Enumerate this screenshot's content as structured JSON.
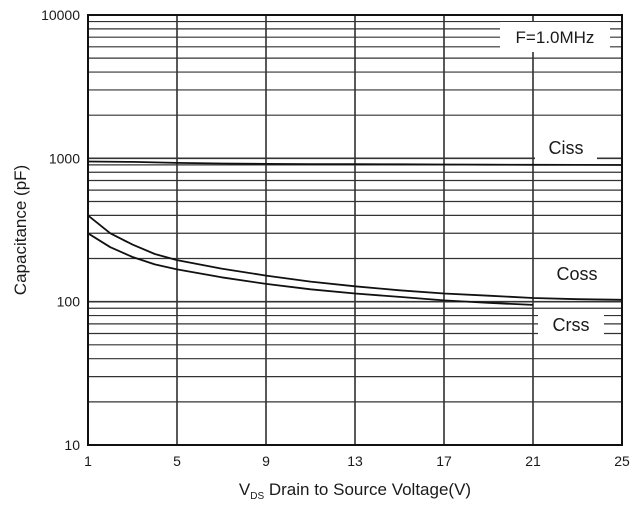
{
  "chart_data": {
    "type": "line",
    "title": "",
    "annotation": "F=1.0MHz",
    "xlabel_prefix": "V",
    "xlabel_subscript": "DS",
    "xlabel_text": " Drain to Source Voltage(V)",
    "ylabel": "Capacitance (pF)",
    "x_ticks": [
      "1",
      "5",
      "9",
      "13",
      "17",
      "21",
      "25"
    ],
    "y_ticks": [
      "10",
      "100",
      "1000",
      "10000"
    ],
    "xlim": [
      1,
      25
    ],
    "ylim": [
      10,
      10000
    ],
    "y_scale": "log",
    "grid": true,
    "series": [
      {
        "name": "Ciss",
        "x": [
          1,
          3,
          5,
          7,
          9,
          11,
          13,
          15,
          17,
          19,
          21,
          23,
          25
        ],
        "values": [
          950,
          945,
          930,
          920,
          915,
          912,
          910,
          908,
          905,
          903,
          902,
          900,
          898
        ]
      },
      {
        "name": "Coss",
        "x": [
          1,
          2,
          3,
          4,
          5,
          7,
          9,
          11,
          13,
          15,
          17,
          19,
          21,
          23,
          25
        ],
        "values": [
          400,
          300,
          250,
          215,
          195,
          170,
          152,
          138,
          128,
          120,
          114,
          110,
          106,
          104,
          103
        ]
      },
      {
        "name": "Crss",
        "x": [
          1,
          2,
          3,
          4,
          5,
          7,
          9,
          11,
          13,
          15,
          17,
          19,
          21
        ],
        "values": [
          300,
          240,
          205,
          182,
          168,
          148,
          133,
          122,
          114,
          108,
          102,
          98,
          95
        ]
      }
    ]
  }
}
